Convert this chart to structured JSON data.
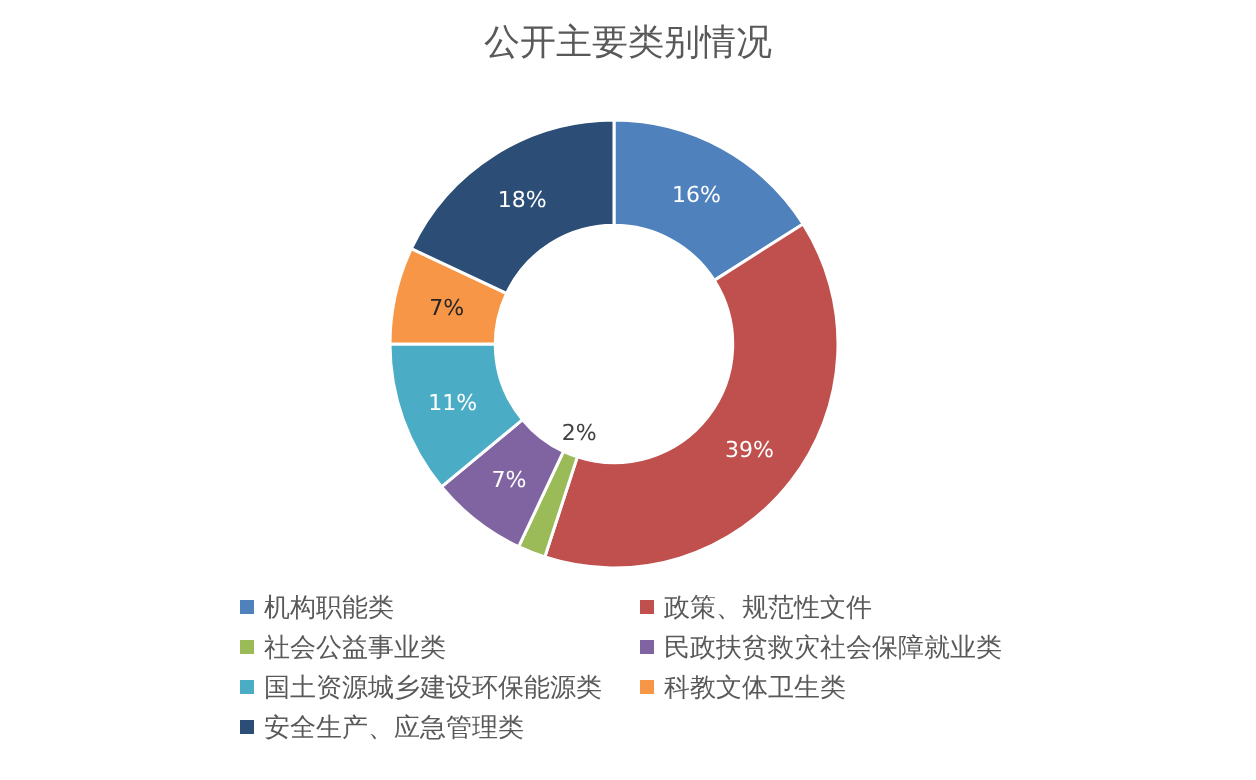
{
  "chart_data": {
    "type": "donut",
    "title": "公开主要类别情况",
    "categories": [
      "机构职能类",
      "政策、规范性文件",
      "社会公益事业类",
      "民政扶贫救灾社会保障就业类",
      "国土资源城乡建设环保能源类",
      "科教文体卫生类",
      "安全生产、应急管理类"
    ],
    "values": [
      16,
      39,
      2,
      7,
      11,
      7,
      18
    ],
    "colors": [
      "#4f81bd",
      "#c0504d",
      "#9bbb59",
      "#8064a2",
      "#4bacc6",
      "#f79646",
      "#2c4d75"
    ],
    "value_labels": [
      "16%",
      "39%",
      "2%",
      "7%",
      "11%",
      "7%",
      "18%"
    ],
    "legend": "bottom"
  }
}
